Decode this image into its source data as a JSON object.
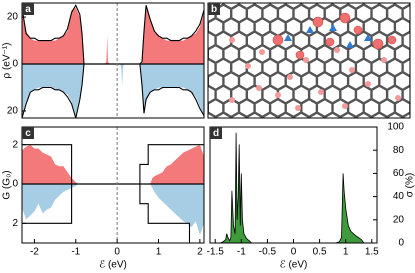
{
  "chart_data": [
    {
      "type": "line",
      "panel_label": "a",
      "ylabel": "ρ (eV⁻¹)",
      "xlim": [
        -2.3,
        2.1
      ],
      "ylim": [
        -23,
        26
      ],
      "yticks": [
        {
          "value": -20,
          "label": "20"
        },
        0,
        20
      ],
      "vline": 0,
      "x": [
        -2.3,
        -2.2,
        -2.1,
        -2.0,
        -1.9,
        -1.8,
        -1.7,
        -1.6,
        -1.5,
        -1.4,
        -1.3,
        -1.2,
        -1.1,
        -1.0,
        -0.9,
        -0.85,
        -0.8,
        -0.3,
        -0.26,
        -0.24,
        -0.22,
        -0.18,
        0.08,
        0.1,
        0.12,
        0.14,
        0.16,
        0.55,
        0.6,
        0.65,
        0.7,
        0.8,
        0.9,
        1.0,
        1.1,
        1.2,
        1.3,
        1.4,
        1.5,
        1.6,
        1.7,
        1.8,
        1.9,
        2.0,
        2.1
      ],
      "series": [
        {
          "color": "#f4797b",
          "fill": true,
          "values": [
            22,
            14,
            11,
            10,
            10,
            10,
            10,
            10,
            10,
            11,
            12,
            14,
            23,
            24,
            20,
            12,
            0,
            0,
            1,
            12,
            1,
            0,
            0,
            0,
            0,
            0,
            0,
            0,
            0,
            12,
            24,
            20,
            14,
            12,
            11,
            10,
            10,
            10,
            10,
            10,
            11,
            12,
            13,
            16,
            22
          ]
        },
        {
          "color": "#a7cde5",
          "fill": true,
          "values": [
            -22,
            -16,
            -12,
            -11,
            -10,
            -10,
            -10,
            -10,
            -11,
            -11,
            -12,
            -13,
            -16,
            -22,
            -14,
            -8,
            0,
            0,
            0,
            0,
            0,
            0,
            0,
            -2,
            -10,
            -2,
            0,
            0,
            -8,
            -20,
            -16,
            -12,
            -11,
            -10,
            -10,
            -10,
            -10,
            -10,
            -10,
            -10,
            -11,
            -12,
            -14,
            -18,
            -23
          ]
        },
        {
          "color": "#000000",
          "fill": false,
          "values": [
            24,
            13,
            11,
            11,
            10,
            10,
            10,
            10,
            11,
            11,
            12,
            15,
            22,
            25,
            21,
            13,
            0,
            0,
            0,
            0,
            0,
            0,
            0,
            0,
            0,
            0,
            0,
            0,
            1,
            14,
            25,
            19,
            14,
            12,
            11,
            11,
            10,
            10,
            10,
            11,
            11,
            12,
            14,
            17,
            23
          ]
        },
        {
          "color": "#000000",
          "fill": false,
          "values": [
            -23,
            -17,
            -12,
            -11,
            -11,
            -10,
            -10,
            -10,
            -11,
            -11,
            -12,
            -14,
            -17,
            -23,
            -15,
            -9,
            0,
            0,
            0,
            0,
            0,
            0,
            0,
            0,
            0,
            0,
            0,
            0,
            -9,
            -21,
            -15,
            -12,
            -11,
            -11,
            -10,
            -10,
            -10,
            -10,
            -10,
            -11,
            -11,
            -12,
            -15,
            -19,
            -22
          ]
        }
      ]
    },
    {
      "type": "line",
      "panel_label": "c",
      "ylabel": "G (G₀)",
      "xlabel": "ℰ (eV)",
      "xlim": [
        -2.3,
        2.1
      ],
      "ylim": [
        -3.0,
        2.9
      ],
      "yticks": [
        {
          "value": -2,
          "label": "2"
        },
        0,
        2
      ],
      "xticks": [
        -2,
        -1,
        0,
        1,
        2
      ],
      "vline": 0,
      "series": [
        {
          "color": "#f4797b",
          "fill": true,
          "x": [
            -2.3,
            -2.2,
            -2.1,
            -2.0,
            -1.9,
            -1.8,
            -1.7,
            -1.6,
            -1.5,
            -1.4,
            -1.3,
            -1.2,
            -1.1,
            -1.0,
            -0.95
          ],
          "values": [
            1.7,
            1.9,
            2.0,
            1.8,
            1.8,
            1.6,
            1.5,
            1.4,
            1.0,
            0.9,
            0.9,
            0.6,
            0.3,
            0.1,
            0
          ]
        },
        {
          "color": "#f4797b",
          "fill": true,
          "x": [
            0.8,
            0.85,
            0.9,
            1.0,
            1.1,
            1.2,
            1.3,
            1.4,
            1.5,
            1.6,
            1.7,
            1.8,
            1.9,
            2.0,
            2.1
          ],
          "values": [
            0,
            0.3,
            0.4,
            0.5,
            0.6,
            0.9,
            1.0,
            1.2,
            1.4,
            1.6,
            1.7,
            1.8,
            1.9,
            2.0,
            1.4
          ]
        },
        {
          "color": "#a7cde5",
          "fill": true,
          "x": [
            -2.3,
            -2.2,
            -2.1,
            -2.0,
            -1.9,
            -1.8,
            -1.7,
            -1.6,
            -1.5,
            -1.4,
            -1.3,
            -1.2,
            -1.1,
            -1.0,
            -0.95
          ],
          "values": [
            -1.2,
            -1.8,
            -1.6,
            -1.4,
            -1.0,
            -1.5,
            -1.3,
            -1.2,
            -0.8,
            -0.6,
            -0.4,
            -0.3,
            -0.2,
            -0.1,
            0
          ]
        },
        {
          "color": "#a7cde5",
          "fill": true,
          "x": [
            0.8,
            0.9,
            1.0,
            1.1,
            1.2,
            1.3,
            1.4,
            1.5,
            1.6,
            1.7,
            1.8,
            1.9,
            2.0,
            2.1
          ],
          "values": [
            0,
            -0.4,
            -0.7,
            -0.9,
            -1.1,
            -1.3,
            -1.5,
            -1.7,
            -1.9,
            -2.0,
            -2.2,
            -1.9,
            -2.6,
            -2.0
          ]
        },
        {
          "color": "#000000",
          "fill": false,
          "x": [
            -2.3,
            -1.1,
            -1.1,
            0.55,
            0.55,
            0.75,
            0.75,
            2.1
          ],
          "values": [
            2,
            2,
            0,
            0,
            1,
            1,
            2,
            2
          ]
        },
        {
          "color": "#000000",
          "fill": false,
          "x": [
            -2.3,
            -1.1,
            -1.1,
            0.55,
            0.55,
            0.75,
            0.75,
            1.75,
            1.75,
            2.1
          ],
          "values": [
            -2,
            -2,
            0,
            0,
            -1,
            -1,
            -2,
            -2,
            -3,
            -3
          ]
        }
      ]
    },
    {
      "type": "area",
      "panel_label": "d",
      "ylabel": "σ (%)",
      "xlabel": "ℰ (eV)",
      "yaxis": "right",
      "xlim": [
        -1.6,
        1.6
      ],
      "ylim": [
        0,
        100
      ],
      "yticks": [
        0,
        20,
        40,
        60,
        80,
        100
      ],
      "xticks": [
        -1.5,
        -1,
        -0.5,
        0,
        0.5,
        1,
        1.5
      ],
      "x": [
        -1.6,
        -1.4,
        -1.35,
        -1.3,
        -1.28,
        -1.25,
        -1.22,
        -1.2,
        -1.18,
        -1.15,
        -1.12,
        -1.1,
        -1.08,
        -1.06,
        -1.04,
        -1.02,
        -1.0,
        -0.98,
        -0.95,
        -0.9,
        -0.85,
        -0.8,
        0.8,
        0.88,
        0.92,
        0.95,
        0.97,
        1.0,
        1.05,
        1.1,
        1.2,
        1.3,
        1.35,
        1.6
      ],
      "series": [
        {
          "color": "#3e9a3a",
          "values": [
            0,
            0,
            1,
            3,
            8,
            4,
            2,
            5,
            45,
            15,
            8,
            95,
            20,
            40,
            85,
            15,
            60,
            20,
            8,
            4,
            2,
            0,
            0,
            1,
            5,
            60,
            45,
            30,
            15,
            10,
            6,
            3,
            0,
            0
          ]
        }
      ]
    }
  ],
  "panel_b": {
    "panel_label": "b"
  }
}
